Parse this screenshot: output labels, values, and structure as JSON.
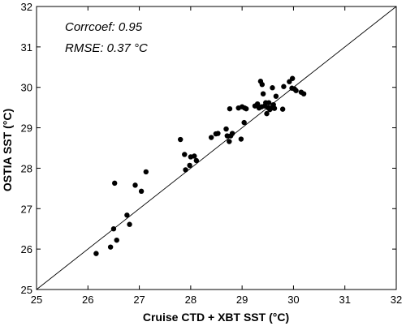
{
  "chart_data": {
    "type": "scatter",
    "xlabel": "Cruise CTD + XBT SST (°C)",
    "ylabel": "OSTIA SST (°C)",
    "xlim": [
      25,
      32
    ],
    "ylim": [
      25,
      32
    ],
    "xticks": [
      25,
      26,
      27,
      28,
      29,
      30,
      31,
      32
    ],
    "yticks": [
      25,
      26,
      27,
      28,
      29,
      30,
      31,
      32
    ],
    "grid": false,
    "reference_line": "y = x",
    "annotations": [
      "Corrcoef: 0.95",
      "RMSE: 0.37 °C"
    ],
    "marker_color": "#000000",
    "points": [
      {
        "x": 26.16,
        "y": 25.89
      },
      {
        "x": 26.44,
        "y": 26.05
      },
      {
        "x": 26.5,
        "y": 26.5
      },
      {
        "x": 26.56,
        "y": 26.22
      },
      {
        "x": 26.52,
        "y": 27.63
      },
      {
        "x": 26.76,
        "y": 26.84
      },
      {
        "x": 26.81,
        "y": 26.61
      },
      {
        "x": 26.92,
        "y": 27.58
      },
      {
        "x": 27.04,
        "y": 27.43
      },
      {
        "x": 27.13,
        "y": 27.91
      },
      {
        "x": 27.8,
        "y": 28.71
      },
      {
        "x": 27.88,
        "y": 28.34
      },
      {
        "x": 27.9,
        "y": 27.96
      },
      {
        "x": 27.98,
        "y": 28.07
      },
      {
        "x": 28.0,
        "y": 28.28
      },
      {
        "x": 28.07,
        "y": 28.3
      },
      {
        "x": 28.11,
        "y": 28.19
      },
      {
        "x": 28.4,
        "y": 28.76
      },
      {
        "x": 28.49,
        "y": 28.85
      },
      {
        "x": 28.53,
        "y": 28.86
      },
      {
        "x": 28.69,
        "y": 28.97
      },
      {
        "x": 28.71,
        "y": 28.8
      },
      {
        "x": 28.75,
        "y": 28.66
      },
      {
        "x": 28.78,
        "y": 28.8
      },
      {
        "x": 28.76,
        "y": 29.47
      },
      {
        "x": 28.81,
        "y": 28.86
      },
      {
        "x": 28.93,
        "y": 29.49
      },
      {
        "x": 28.98,
        "y": 28.72
      },
      {
        "x": 29.0,
        "y": 29.52
      },
      {
        "x": 29.04,
        "y": 29.13
      },
      {
        "x": 29.05,
        "y": 29.49
      },
      {
        "x": 29.08,
        "y": 29.47
      },
      {
        "x": 29.25,
        "y": 29.54
      },
      {
        "x": 29.3,
        "y": 29.59
      },
      {
        "x": 29.33,
        "y": 29.49
      },
      {
        "x": 29.36,
        "y": 30.15
      },
      {
        "x": 29.38,
        "y": 29.52
      },
      {
        "x": 29.39,
        "y": 30.07
      },
      {
        "x": 29.41,
        "y": 29.84
      },
      {
        "x": 29.44,
        "y": 29.54
      },
      {
        "x": 29.46,
        "y": 29.62
      },
      {
        "x": 29.48,
        "y": 29.35
      },
      {
        "x": 29.5,
        "y": 29.5
      },
      {
        "x": 29.52,
        "y": 29.62
      },
      {
        "x": 29.54,
        "y": 29.45
      },
      {
        "x": 29.56,
        "y": 29.48
      },
      {
        "x": 29.59,
        "y": 29.99
      },
      {
        "x": 29.61,
        "y": 29.57
      },
      {
        "x": 29.63,
        "y": 29.48
      },
      {
        "x": 29.66,
        "y": 29.78
      },
      {
        "x": 29.79,
        "y": 29.46
      },
      {
        "x": 29.81,
        "y": 30.02
      },
      {
        "x": 29.92,
        "y": 30.14
      },
      {
        "x": 29.97,
        "y": 29.98
      },
      {
        "x": 29.98,
        "y": 30.22
      },
      {
        "x": 30.02,
        "y": 29.96
      },
      {
        "x": 30.05,
        "y": 29.92
      },
      {
        "x": 30.15,
        "y": 29.88
      },
      {
        "x": 30.2,
        "y": 29.84
      }
    ]
  }
}
